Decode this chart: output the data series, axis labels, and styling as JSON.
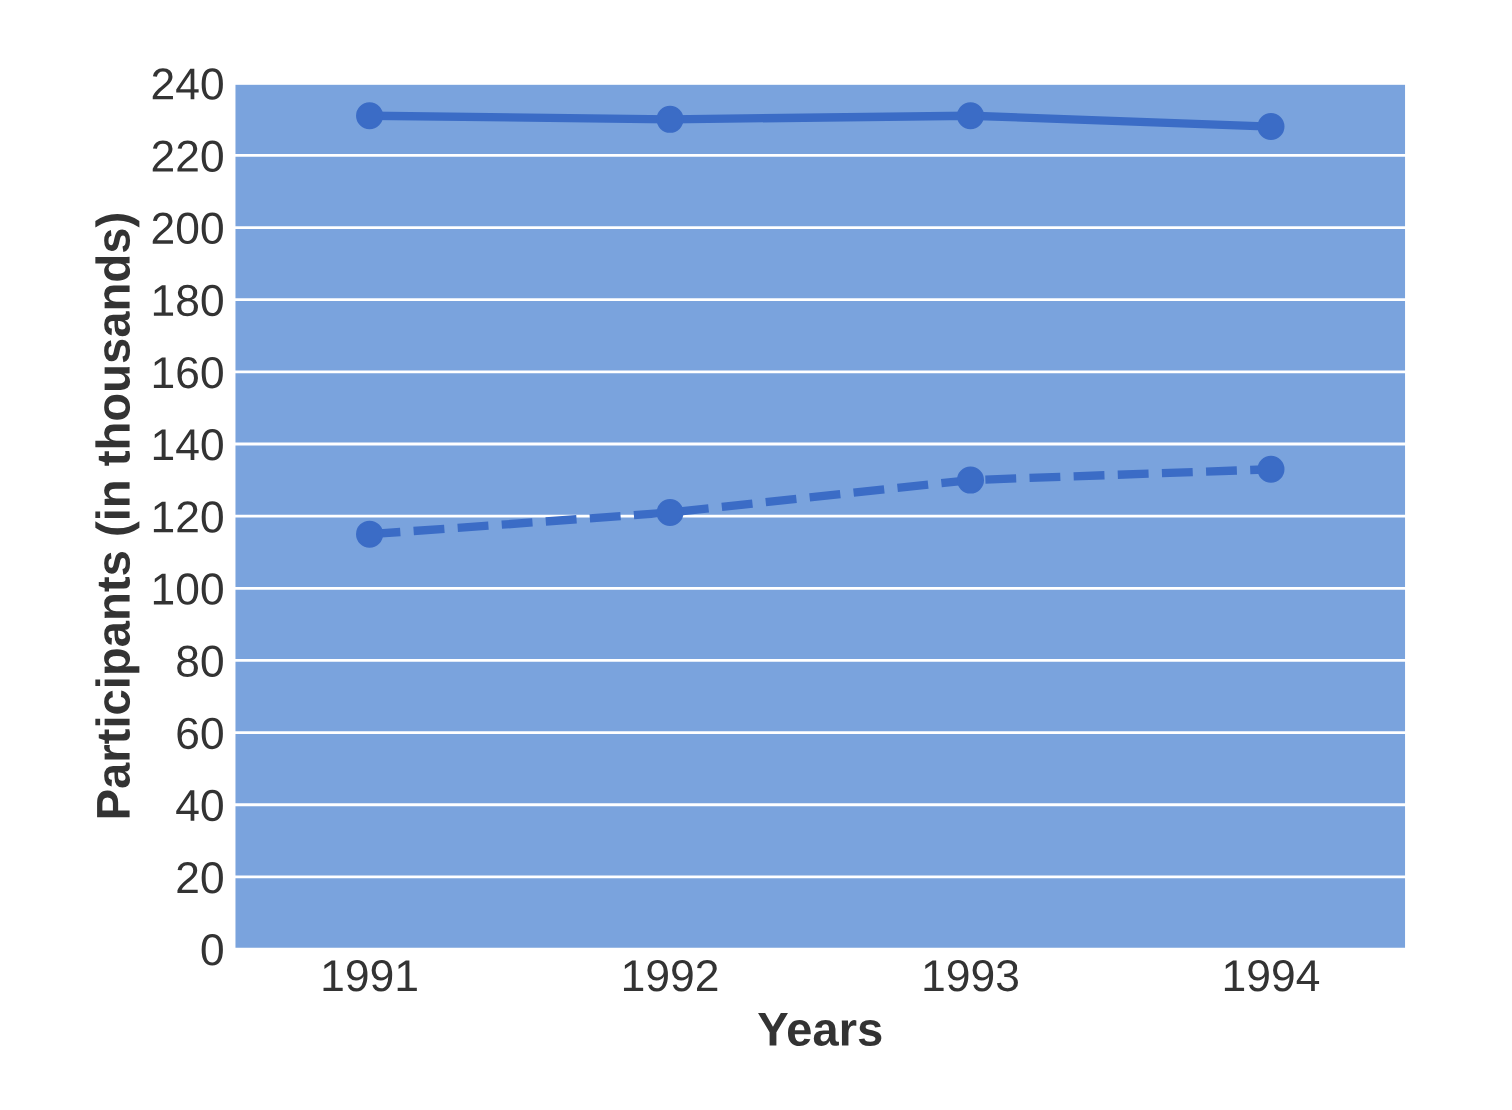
{
  "chart_data": {
    "type": "line",
    "xlabel": "Years",
    "ylabel": "Participants (in thousands)",
    "categories": [
      "1991",
      "1992",
      "1993",
      "1994"
    ],
    "series": [
      {
        "color": "#3b6cc6",
        "values": [
          231,
          230,
          231,
          228
        ],
        "line_style": "solid"
      },
      {
        "color": "#3b6cc6",
        "values": [
          115,
          121,
          130,
          133
        ],
        "line_style": "dashed"
      }
    ],
    "ylim": [
      0,
      240
    ],
    "yticks": [
      0,
      20,
      40,
      60,
      80,
      100,
      120,
      140,
      160,
      180,
      200,
      220,
      240
    ],
    "grid": "y",
    "marker": "circle",
    "legend": false
  }
}
